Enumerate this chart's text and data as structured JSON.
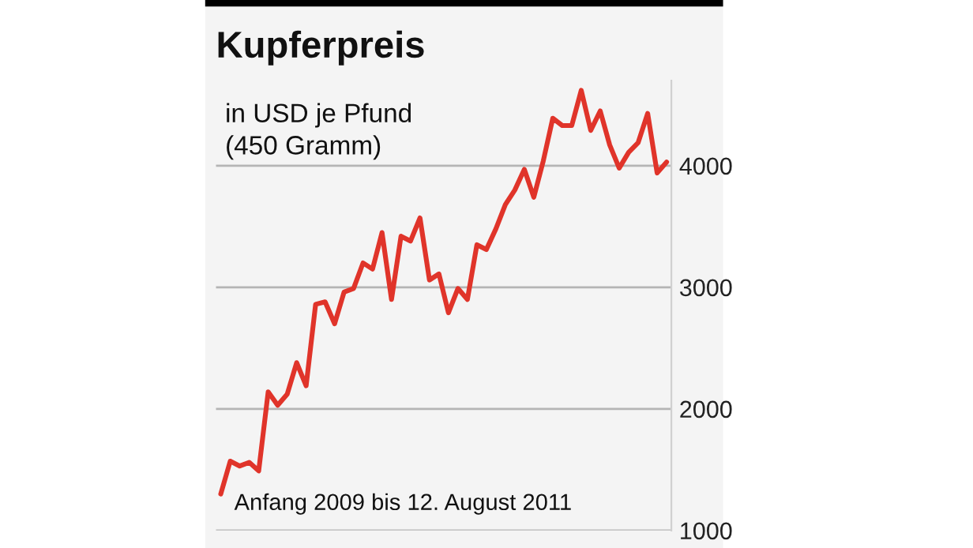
{
  "chart_data": {
    "type": "line",
    "title": "Kupferpreis",
    "subtitle": "in USD je Pfund\n(450 Gramm)",
    "annotations": [
      "Anfang 2009 bis 12. August 2011"
    ],
    "categories": [
      null,
      null,
      null,
      null,
      null,
      null,
      null,
      null,
      null,
      null,
      null,
      null,
      null,
      null,
      null,
      null,
      null,
      null,
      null,
      null,
      null,
      null,
      null,
      null,
      null,
      null,
      null,
      null,
      null,
      null,
      null,
      null,
      null,
      null,
      null,
      null,
      null,
      null,
      null,
      null,
      null,
      null,
      null,
      null,
      null,
      null,
      null,
      null
    ],
    "series": [
      {
        "color": "#e0342a",
        "values": [
          1300,
          1570,
          1530,
          1560,
          1490,
          2140,
          2030,
          2120,
          2380,
          2190,
          2860,
          2880,
          2700,
          2960,
          2990,
          3200,
          3150,
          3450,
          2900,
          3420,
          3380,
          3570,
          3060,
          3110,
          2790,
          2990,
          2900,
          3350,
          3310,
          3480,
          3680,
          3800,
          3970,
          3740,
          4040,
          4390,
          4330,
          4330,
          4620,
          4290,
          4450,
          4170,
          3980,
          4110,
          4190,
          4430,
          3940,
          4030
        ]
      }
    ],
    "ylim": [
      1000,
      4700
    ],
    "yticks": [
      1000,
      2000,
      3000,
      4000
    ],
    "grid": "y",
    "marker": "none",
    "line_style": "solid",
    "legend": false
  }
}
